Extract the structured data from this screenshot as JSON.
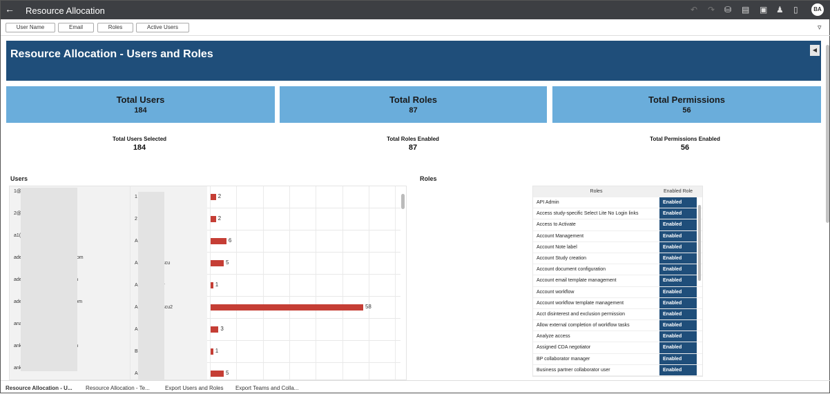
{
  "header": {
    "title": "Resource Allocation",
    "avatar": "BA",
    "icons": [
      "back-icon",
      "undo-icon",
      "redo-icon",
      "data-icon",
      "comment-icon",
      "present-icon",
      "share-user-icon",
      "bookmark-icon"
    ]
  },
  "filters": {
    "buttons": [
      "User Name",
      "Email",
      "Roles",
      "Active Users"
    ],
    "filter_icon": "filter-icon"
  },
  "banner": {
    "title": "Resource Allocation - Users and Roles"
  },
  "cards": [
    {
      "label": "Total Users",
      "value": "184"
    },
    {
      "label": "Total Roles",
      "value": "87"
    },
    {
      "label": "Total Permissions",
      "value": "56"
    }
  ],
  "kpis": [
    {
      "label": "Total Users Selected",
      "value": "184"
    },
    {
      "label": "Total Roles Enabled",
      "value": "87"
    },
    {
      "label": "Total Permissions Enabled",
      "value": "56"
    }
  ],
  "users": {
    "title": "Users",
    "rows": [
      {
        "email_start": "1@",
        "email_end": "",
        "name_start": "1",
        "name_end": "",
        "value": 2
      },
      {
        "email_start": "2@",
        "email_end": "",
        "name_start": "2",
        "name_end": "",
        "value": 2
      },
      {
        "email_start": "a1(",
        "email_end": "",
        "name_start": "A",
        "name_end": "",
        "value": 6
      },
      {
        "email_start": "ade",
        "email_end": "le.com",
        "name_start": "A",
        "name_end": "rescu",
        "value": 5
      },
      {
        "email_start": "ade",
        "email_end": "com",
        "name_start": "A",
        "name_end": "ser",
        "value": 1
      },
      {
        "email_start": "ade",
        "email_end": "o.com",
        "name_start": "A",
        "name_end": "rescu2",
        "value": 58
      },
      {
        "email_start": "ana",
        "email_end": "",
        "name_start": "A",
        "name_end": "ra",
        "value": 3
      },
      {
        "email_start": "ank",
        "email_end": "com",
        "name_start": "B",
        "name_end": "",
        "value": 1
      },
      {
        "email_start": "ank",
        "email_end": "n",
        "name_start": "A",
        "name_end": "st",
        "value": 5
      }
    ]
  },
  "roles": {
    "title": "Roles",
    "headers": [
      "Roles",
      "Enabled Role"
    ],
    "rows": [
      [
        "API Admin",
        "Enabled"
      ],
      [
        "Access study-specific Select Lite No Login links",
        "Enabled"
      ],
      [
        "Access to Activate",
        "Enabled"
      ],
      [
        "Account Management",
        "Enabled"
      ],
      [
        "Account Note label",
        "Enabled"
      ],
      [
        "Account Study creation",
        "Enabled"
      ],
      [
        "Account document configuration",
        "Enabled"
      ],
      [
        "Account email template management",
        "Enabled"
      ],
      [
        "Account workflow",
        "Enabled"
      ],
      [
        "Account workflow template management",
        "Enabled"
      ],
      [
        "Acct disinterest and exclusion permission",
        "Enabled"
      ],
      [
        "Allow external completion of workflow tasks",
        "Enabled"
      ],
      [
        "Analyze access",
        "Enabled"
      ],
      [
        "Assigned CDA negotiator",
        "Enabled"
      ],
      [
        "BP collaborator manager",
        "Enabled"
      ],
      [
        "Business partner collaborator user",
        "Enabled"
      ]
    ]
  },
  "tabs": [
    "Resource Allocation - U...",
    "Resource Allocation - Te...",
    "Export Users and Roles",
    "Export Teams and Colla..."
  ],
  "colors": {
    "topbar": "#3d3f43",
    "banner": "#1f4e7a",
    "card": "#6aaddb",
    "bar": "#c53e35"
  }
}
